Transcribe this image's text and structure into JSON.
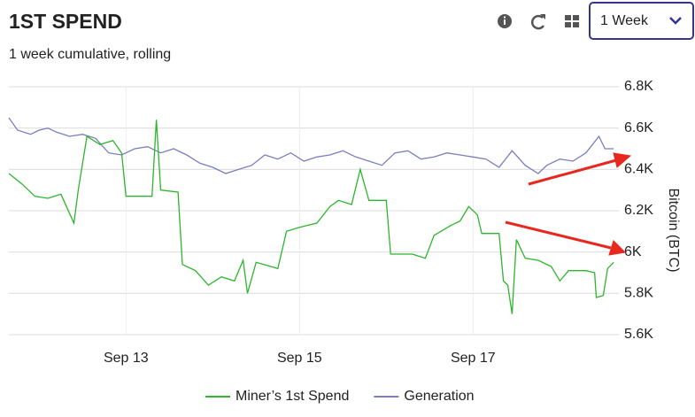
{
  "controls": {
    "range": "1 Week"
  },
  "chart_data": {
    "type": "line",
    "title": "1ST SPEND",
    "subtitle": "1 week cumulative, rolling",
    "y_label": "Bitcoin (BTC)",
    "xlim": [
      11.65,
      18.68
    ],
    "xticks": [
      {
        "value": 13,
        "label": "Sep 13"
      },
      {
        "value": 15,
        "label": "Sep 15"
      },
      {
        "value": 17,
        "label": "Sep 17"
      }
    ],
    "ylim": [
      5600,
      6800
    ],
    "yticks": [
      {
        "value": 5600,
        "label": "5.6K"
      },
      {
        "value": 5800,
        "label": "5.8K"
      },
      {
        "value": 6000,
        "label": "6K"
      },
      {
        "value": 6200,
        "label": "6.2K"
      },
      {
        "value": 6400,
        "label": "6.4K"
      },
      {
        "value": 6600,
        "label": "6.6K"
      },
      {
        "value": 6800,
        "label": "6.8K"
      }
    ],
    "grid": true,
    "series": [
      {
        "name": "Miner’s 1st Spend",
        "color": "#2db52d",
        "x": [
          11.65,
          11.8,
          11.95,
          12.1,
          12.25,
          12.4,
          12.45,
          12.55,
          12.7,
          12.85,
          12.95,
          13.0,
          13.3,
          13.35,
          13.4,
          13.6,
          13.65,
          13.8,
          13.95,
          14.1,
          14.25,
          14.35,
          14.4,
          14.5,
          14.75,
          14.85,
          15.0,
          15.2,
          15.35,
          15.45,
          15.6,
          15.7,
          15.8,
          16.0,
          16.05,
          16.3,
          16.45,
          16.55,
          16.75,
          16.85,
          16.95,
          17.05,
          17.1,
          17.3,
          17.35,
          17.4,
          17.45,
          17.5,
          17.6,
          17.75,
          17.9,
          18.0,
          18.1,
          18.3,
          18.4,
          18.42,
          18.5,
          18.55,
          18.62
        ],
        "values": [
          6380,
          6330,
          6270,
          6260,
          6280,
          6140,
          6300,
          6560,
          6520,
          6540,
          6480,
          6270,
          6270,
          6640,
          6300,
          6290,
          5940,
          5910,
          5840,
          5880,
          5860,
          5960,
          5800,
          5950,
          5920,
          6100,
          6120,
          6140,
          6220,
          6250,
          6230,
          6400,
          6250,
          6250,
          5990,
          5990,
          5970,
          6080,
          6130,
          6150,
          6220,
          6180,
          6090,
          6090,
          5860,
          5840,
          5700,
          6060,
          5970,
          5960,
          5930,
          5860,
          5910,
          5910,
          5900,
          5780,
          5790,
          5920,
          5950
        ]
      },
      {
        "name": "Generation",
        "color": "#7a7ec0",
        "x": [
          11.65,
          11.75,
          11.9,
          12.0,
          12.1,
          12.2,
          12.35,
          12.5,
          12.65,
          12.8,
          12.95,
          13.1,
          13.25,
          13.4,
          13.55,
          13.7,
          13.85,
          14.0,
          14.15,
          14.3,
          14.45,
          14.6,
          14.75,
          14.9,
          15.05,
          15.2,
          15.35,
          15.5,
          15.65,
          15.8,
          15.95,
          16.1,
          16.25,
          16.4,
          16.55,
          16.7,
          16.85,
          17.0,
          17.15,
          17.3,
          17.45,
          17.6,
          17.75,
          17.85,
          18.0,
          18.15,
          18.3,
          18.45,
          18.52,
          18.62
        ],
        "values": [
          6650,
          6590,
          6570,
          6590,
          6600,
          6580,
          6560,
          6570,
          6550,
          6480,
          6470,
          6500,
          6510,
          6480,
          6500,
          6470,
          6430,
          6410,
          6380,
          6400,
          6420,
          6470,
          6450,
          6480,
          6440,
          6460,
          6470,
          6490,
          6460,
          6440,
          6420,
          6480,
          6490,
          6450,
          6460,
          6480,
          6470,
          6460,
          6450,
          6410,
          6490,
          6420,
          6380,
          6420,
          6450,
          6440,
          6480,
          6560,
          6500,
          6500
        ]
      }
    ]
  }
}
